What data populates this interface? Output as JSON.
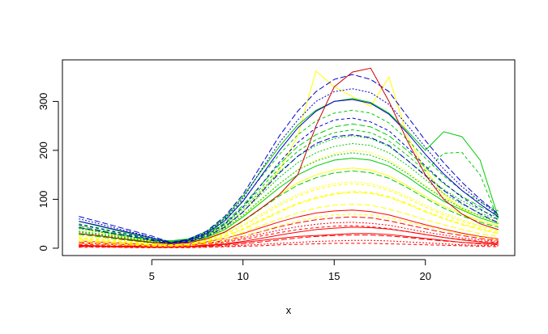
{
  "chart_data": {
    "type": "line",
    "title": "",
    "xlabel": "x",
    "ylabel": "",
    "xlim": [
      0.1,
      24.9
    ],
    "ylim": [
      -15,
      385
    ],
    "x_ticks": [
      5,
      10,
      15,
      20
    ],
    "y_ticks": [
      0,
      100,
      200,
      300
    ],
    "x_tick_labels": [
      "5",
      "10",
      "15",
      "20"
    ],
    "y_tick_labels": [
      "0",
      "100",
      "200",
      "300"
    ],
    "grid": false,
    "legend": "none",
    "palette": [
      "#ff0000",
      "#ffff00",
      "#00cc00",
      "#0000cc"
    ],
    "x": [
      1,
      2,
      3,
      4,
      5,
      6,
      7,
      8,
      9,
      10,
      11,
      12,
      13,
      14,
      15,
      16,
      17,
      18,
      19,
      20,
      21,
      22,
      23,
      24
    ],
    "series": [
      {
        "color": "#ff0000",
        "values": [
          5,
          4,
          3,
          3,
          2,
          2,
          3,
          5,
          8,
          12,
          16,
          20,
          24,
          26,
          28,
          30,
          30,
          28,
          24,
          20,
          16,
          12,
          10,
          8
        ]
      },
      {
        "color": "#ff0000",
        "values": [
          8,
          7,
          6,
          5,
          4,
          4,
          5,
          8,
          12,
          18,
          25,
          32,
          38,
          42,
          45,
          46,
          44,
          40,
          34,
          28,
          22,
          18,
          14,
          12
        ]
      },
      {
        "color": "#ff0000",
        "values": [
          3,
          3,
          2,
          2,
          2,
          2,
          2,
          3,
          4,
          6,
          8,
          10,
          12,
          14,
          15,
          16,
          16,
          15,
          13,
          11,
          9,
          7,
          6,
          5
        ]
      },
      {
        "color": "#ff0000",
        "values": [
          12,
          10,
          8,
          6,
          5,
          5,
          6,
          10,
          16,
          24,
          34,
          44,
          52,
          58,
          62,
          64,
          62,
          56,
          48,
          40,
          32,
          26,
          20,
          16
        ]
      },
      {
        "color": "#ff0000",
        "values": [
          6,
          5,
          4,
          4,
          3,
          3,
          4,
          6,
          9,
          14,
          20,
          27,
          33,
          38,
          41,
          43,
          42,
          39,
          34,
          28,
          22,
          17,
          13,
          10
        ]
      },
      {
        "color": "#ff0000",
        "values": [
          2,
          2,
          2,
          1,
          1,
          1,
          1,
          2,
          3,
          4,
          5,
          7,
          8,
          9,
          10,
          10,
          10,
          9,
          8,
          7,
          6,
          5,
          4,
          3
        ]
      },
      {
        "color": "#ff0000",
        "values": [
          10,
          9,
          7,
          6,
          5,
          5,
          6,
          9,
          14,
          21,
          29,
          37,
          44,
          49,
          52,
          53,
          51,
          47,
          40,
          33,
          27,
          21,
          17,
          14
        ]
      },
      {
        "color": "#ff0000",
        "values": [
          4,
          4,
          3,
          3,
          2,
          2,
          3,
          4,
          6,
          9,
          13,
          17,
          21,
          24,
          26,
          27,
          27,
          25,
          22,
          18,
          15,
          12,
          9,
          7
        ]
      },
      {
        "color": "#ff0000",
        "values": [
          15,
          13,
          11,
          9,
          7,
          7,
          8,
          13,
          20,
          30,
          42,
          54,
          64,
          72,
          76,
          78,
          75,
          68,
          58,
          48,
          39,
          31,
          24,
          19
        ]
      },
      {
        "color": "#ffff00",
        "values": [
          20,
          17,
          14,
          11,
          8,
          7,
          9,
          15,
          25,
          40,
          58,
          76,
          92,
          104,
          112,
          116,
          114,
          106,
          92,
          76,
          62,
          50,
          40,
          32
        ]
      },
      {
        "color": "#ffff00",
        "values": [
          25,
          22,
          18,
          14,
          10,
          9,
          11,
          18,
          30,
          48,
          70,
          92,
          110,
          124,
          132,
          136,
          132,
          122,
          106,
          88,
          72,
          58,
          46,
          38
        ]
      },
      {
        "color": "#ffff00",
        "values": [
          15,
          13,
          10,
          8,
          6,
          5,
          7,
          12,
          20,
          32,
          46,
          60,
          72,
          82,
          88,
          90,
          88,
          80,
          70,
          58,
          48,
          38,
          30,
          24
        ]
      },
      {
        "color": "#ffff00",
        "values": [
          30,
          26,
          21,
          16,
          12,
          10,
          12,
          20,
          34,
          56,
          82,
          110,
          134,
          150,
          160,
          164,
          160,
          148,
          128,
          106,
          86,
          70,
          56,
          46
        ]
      },
      {
        "color": "#ffff00",
        "values": [
          10,
          9,
          7,
          6,
          4,
          4,
          5,
          9,
          15,
          24,
          35,
          46,
          56,
          63,
          68,
          70,
          68,
          62,
          54,
          45,
          37,
          29,
          23,
          18
        ]
      },
      {
        "color": "#ffff00",
        "values": [
          35,
          30,
          24,
          18,
          13,
          11,
          14,
          24,
          40,
          66,
          98,
          132,
          160,
          180,
          194,
          200,
          196,
          180,
          156,
          128,
          104,
          84,
          66,
          54
        ]
      },
      {
        "color": "#ffff00",
        "values": [
          18,
          15,
          12,
          10,
          7,
          6,
          8,
          14,
          24,
          38,
          56,
          74,
          90,
          102,
          110,
          114,
          112,
          104,
          90,
          74,
          60,
          48,
          38,
          30
        ]
      },
      {
        "color": "#ffff00",
        "values": [
          40,
          34,
          27,
          20,
          14,
          12,
          15,
          26,
          45,
          75,
          115,
          160,
          230,
          362,
          330,
          310,
          290,
          350,
          230,
          160,
          110,
          80,
          62,
          50
        ]
      },
      {
        "color": "#ffff00",
        "values": [
          22,
          19,
          15,
          12,
          9,
          8,
          10,
          16,
          28,
          46,
          66,
          88,
          106,
          120,
          128,
          132,
          128,
          118,
          102,
          84,
          68,
          55,
          44,
          36
        ]
      },
      {
        "color": "#00cc00",
        "values": [
          35,
          30,
          25,
          20,
          15,
          12,
          15,
          25,
          45,
          75,
          110,
          145,
          175,
          195,
          208,
          214,
          210,
          195,
          170,
          140,
          112,
          90,
          72,
          58
        ]
      },
      {
        "color": "#00cc00",
        "values": [
          45,
          38,
          31,
          24,
          17,
          14,
          17,
          29,
          52,
          88,
          130,
          172,
          208,
          232,
          248,
          254,
          248,
          230,
          200,
          165,
          132,
          106,
          85,
          68
        ]
      },
      {
        "color": "#00cc00",
        "values": [
          30,
          26,
          21,
          17,
          12,
          10,
          13,
          22,
          38,
          64,
          94,
          124,
          150,
          168,
          180,
          184,
          180,
          168,
          146,
          120,
          96,
          78,
          62,
          50
        ]
      },
      {
        "color": "#00cc00",
        "values": [
          50,
          42,
          34,
          26,
          18,
          15,
          18,
          32,
          58,
          98,
          146,
          192,
          232,
          260,
          276,
          282,
          276,
          256,
          222,
          184,
          148,
          118,
          94,
          76
        ]
      },
      {
        "color": "#00cc00",
        "values": [
          40,
          34,
          28,
          22,
          16,
          13,
          16,
          27,
          48,
          80,
          118,
          156,
          188,
          210,
          224,
          230,
          224,
          208,
          180,
          150,
          120,
          97,
          78,
          63
        ]
      },
      {
        "color": "#00cc00",
        "values": [
          28,
          24,
          19,
          15,
          11,
          9,
          11,
          19,
          33,
          55,
          81,
          107,
          129,
          144,
          154,
          158,
          154,
          143,
          124,
          102,
          82,
          66,
          53,
          43
        ]
      },
      {
        "color": "#00cc00",
        "values": [
          55,
          46,
          37,
          28,
          19,
          15,
          19,
          34,
          62,
          106,
          158,
          208,
          252,
          282,
          300,
          306,
          298,
          276,
          240,
          200,
          238,
          228,
          180,
          62
        ]
      },
      {
        "color": "#00cc00",
        "values": [
          42,
          36,
          29,
          23,
          16,
          13,
          16,
          28,
          50,
          84,
          124,
          164,
          198,
          222,
          236,
          242,
          236,
          219,
          190,
          158,
          194,
          196,
          150,
          58
        ]
      },
      {
        "color": "#00cc00",
        "values": [
          33,
          28,
          23,
          18,
          13,
          11,
          13,
          23,
          41,
          68,
          100,
          132,
          160,
          178,
          190,
          195,
          190,
          176,
          153,
          126,
          102,
          82,
          66,
          53
        ]
      },
      {
        "color": "#0000cc",
        "values": [
          65,
          55,
          45,
          35,
          25,
          12,
          18,
          35,
          65,
          110,
          170,
          230,
          280,
          320,
          345,
          355,
          345,
          320,
          270,
          220,
          175,
          135,
          100,
          70
        ]
      },
      {
        "color": "#0000cc",
        "values": [
          55,
          47,
          38,
          30,
          21,
          11,
          16,
          30,
          56,
          96,
          148,
          200,
          246,
          280,
          300,
          304,
          296,
          274,
          236,
          192,
          152,
          118,
          90,
          64
        ]
      },
      {
        "color": "#0000cc",
        "values": [
          48,
          41,
          33,
          26,
          18,
          10,
          14,
          27,
          49,
          84,
          130,
          176,
          216,
          246,
          262,
          266,
          258,
          240,
          206,
          168,
          134,
          104,
          80,
          58
        ]
      },
      {
        "color": "#0000cc",
        "values": [
          60,
          51,
          41,
          32,
          22,
          11,
          17,
          32,
          60,
          102,
          160,
          216,
          262,
          300,
          320,
          326,
          318,
          294,
          252,
          206,
          162,
          126,
          96,
          68
        ]
      },
      {
        "color": "#0000cc",
        "values": [
          42,
          36,
          29,
          23,
          16,
          9,
          13,
          24,
          43,
          74,
          114,
          154,
          188,
          214,
          228,
          232,
          226,
          210,
          180,
          148,
          118,
          92,
          70,
          52
        ]
      },
      {
        "color": "#cc0000",
        "values": [
          30,
          26,
          21,
          16,
          12,
          9,
          11,
          19,
          33,
          56,
          82,
          110,
          150,
          250,
          330,
          360,
          368,
          300,
          220,
          150,
          100,
          70,
          50,
          38
        ]
      }
    ]
  }
}
